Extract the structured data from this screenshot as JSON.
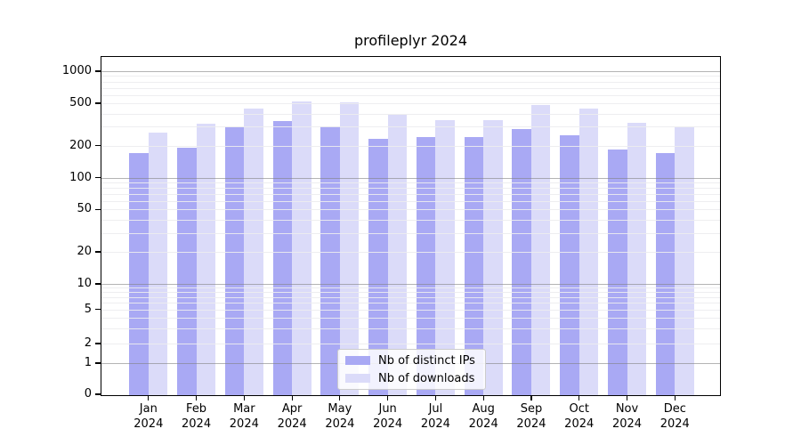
{
  "chart_data": {
    "type": "bar",
    "title": "profileplyr 2024",
    "categories": [
      "Jan 2024",
      "Feb 2024",
      "Mar 2024",
      "Apr 2024",
      "May 2024",
      "Jun 2024",
      "Jul 2024",
      "Aug 2024",
      "Sep 2024",
      "Oct 2024",
      "Nov 2024",
      "Dec 2024"
    ],
    "series": [
      {
        "name": "Nb of distinct IPs",
        "color": "#a9a9f4",
        "values": [
          170,
          190,
          298,
          338,
          301,
          231,
          240,
          238,
          288,
          251,
          183,
          170
        ]
      },
      {
        "name": "Nb of downloads",
        "color": "#dbdbf9",
        "values": [
          265,
          322,
          449,
          516,
          513,
          390,
          347,
          348,
          483,
          445,
          324,
          296
        ]
      }
    ],
    "yticks": [
      0,
      1,
      2,
      5,
      10,
      20,
      50,
      100,
      200,
      500,
      1000
    ],
    "yscale": "log-like with compressed 0-10 region",
    "ylim": [
      0,
      1400
    ],
    "grid": true,
    "legend_position": "lower center",
    "xlabel": "",
    "ylabel": ""
  },
  "colors": {
    "background": "#ffffff",
    "spine": "#000000",
    "grid_major": "rgba(130,130,130,0.6)",
    "grid_minor": "rgba(236,236,238,0.9)",
    "legend_border": "#cccccc",
    "text": "#000000"
  }
}
